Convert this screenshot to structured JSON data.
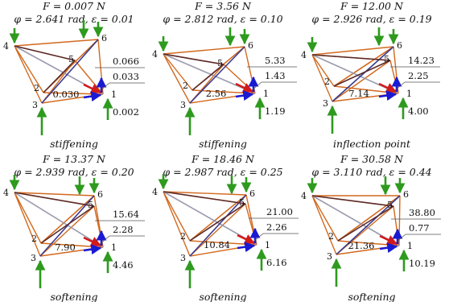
{
  "panels": [
    {
      "force": "F = 0.007 N",
      "params": "φ = 2.641 rad, ε = 0.01",
      "val_a": "0.066",
      "val_b": "0.033",
      "val_c": "0.030",
      "val_d": "0.002",
      "caption": "stiffening"
    },
    {
      "force": "F = 3.56 N",
      "params": "φ = 2.812 rad, ε = 0.10",
      "val_a": "5.33",
      "val_b": "1.43",
      "val_c": "2.56",
      "val_d": "1.19",
      "caption": "stiffening"
    },
    {
      "force": "F = 12.00 N",
      "params": "φ = 2.926 rad, ε = 0.19",
      "val_a": "14.23",
      "val_b": "2.25",
      "val_c": "7.14",
      "val_d": "4.00",
      "caption": "inflection point"
    },
    {
      "force": "F = 13.37 N",
      "params": "φ = 2.939 rad, ε = 0.20",
      "val_a": "15.64",
      "val_b": "2.28",
      "val_c": "7.90",
      "val_d": "4.46",
      "caption": "softening"
    },
    {
      "force": "F = 18.46 N",
      "params": "φ = 2.987 rad, ε = 0.25",
      "val_a": "21.00",
      "val_b": "2.26",
      "val_c": "10.84",
      "val_d": "6.16",
      "caption": "softening"
    },
    {
      "force": "F = 30.58 N",
      "params": "φ = 3.110 rad, ε = 0.44",
      "val_a": "38.80",
      "val_b": "0.77",
      "val_c": "21.36",
      "val_d": "10.19",
      "caption": "softening"
    }
  ],
  "node_labels": [
    "1",
    "2",
    "3",
    "4",
    "5",
    "6"
  ],
  "colors": {
    "cable": "#d2691e",
    "strut_dark": "#5a2a2a",
    "strut_navy": "#3b3b8f",
    "strut_grey": "#9a9aae",
    "force_green": "#2e9a1e",
    "force_red": "#d21a1a",
    "force_blue": "#1a1ad2"
  }
}
